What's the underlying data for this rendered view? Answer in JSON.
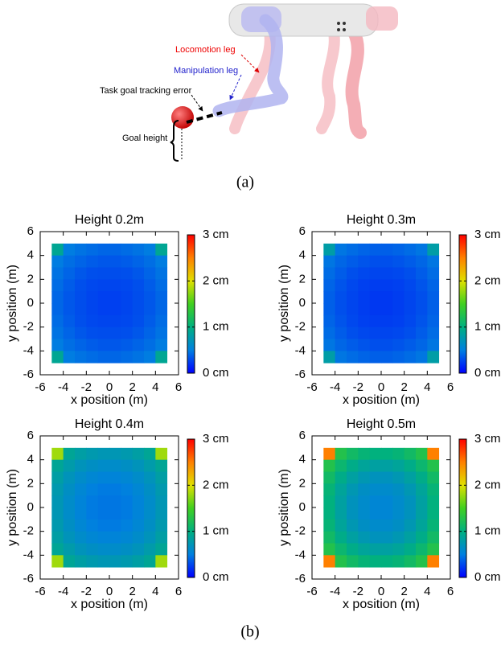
{
  "illustration": {
    "locomotion_label": "Locomotion leg",
    "manipulation_label": "Manipulation leg",
    "error_label": "Task goal tracking error",
    "height_label": "Goal height",
    "caption": "(a)"
  },
  "caption_b": "(b)",
  "chart_data": [
    {
      "type": "heatmap",
      "title": "Height 0.2m",
      "xlabel": "x position (m)",
      "ylabel": "y position (m)",
      "x": [
        -4.5,
        -3.5,
        -2.5,
        -1.5,
        -0.5,
        0.5,
        1.5,
        2.5,
        3.5,
        4.5
      ],
      "y": [
        4.5,
        3.5,
        2.5,
        1.5,
        0.5,
        -0.5,
        -1.5,
        -2.5,
        -3.5,
        -4.5
      ],
      "values": [
        [
          0.9,
          0.49,
          0.45,
          0.42,
          0.4,
          0.4,
          0.42,
          0.45,
          0.49,
          0.9
        ],
        [
          0.49,
          0.43,
          0.39,
          0.36,
          0.34,
          0.34,
          0.36,
          0.39,
          0.43,
          0.49
        ],
        [
          0.45,
          0.39,
          0.34,
          0.31,
          0.3,
          0.3,
          0.31,
          0.34,
          0.39,
          0.45
        ],
        [
          0.42,
          0.36,
          0.31,
          0.28,
          0.27,
          0.27,
          0.28,
          0.31,
          0.36,
          0.42
        ],
        [
          0.4,
          0.34,
          0.3,
          0.27,
          0.25,
          0.25,
          0.27,
          0.3,
          0.34,
          0.4
        ],
        [
          0.4,
          0.34,
          0.3,
          0.27,
          0.25,
          0.25,
          0.27,
          0.3,
          0.34,
          0.4
        ],
        [
          0.42,
          0.36,
          0.31,
          0.28,
          0.27,
          0.27,
          0.28,
          0.31,
          0.36,
          0.42
        ],
        [
          0.45,
          0.39,
          0.34,
          0.31,
          0.3,
          0.3,
          0.31,
          0.34,
          0.39,
          0.45
        ],
        [
          0.49,
          0.43,
          0.39,
          0.36,
          0.34,
          0.34,
          0.36,
          0.39,
          0.43,
          0.49
        ],
        [
          0.9,
          0.49,
          0.45,
          0.42,
          0.4,
          0.4,
          0.42,
          0.45,
          0.49,
          0.9
        ]
      ],
      "xlim": [
        -6,
        6
      ],
      "ylim": [
        -6,
        6
      ],
      "xticks": [
        -6,
        -4,
        -2,
        0,
        2,
        4,
        6
      ],
      "yticks": [
        -6,
        -4,
        -2,
        0,
        2,
        4,
        6
      ],
      "colorbar": {
        "lim": [
          0,
          3
        ],
        "ticks": [
          {
            "value": 0,
            "label": "0 cm"
          },
          {
            "value": 1,
            "label": "1 cm"
          },
          {
            "value": 2,
            "label": "2 cm"
          },
          {
            "value": 3,
            "label": "3 cm"
          }
        ],
        "colormap": [
          "#0000ff",
          "#0080e0",
          "#00b080",
          "#40d020",
          "#e0e000",
          "#ff8000",
          "#ff0000"
        ]
      }
    },
    {
      "type": "heatmap",
      "title": "Height 0.3m",
      "xlabel": "x position (m)",
      "ylabel": "y position (m)",
      "x": [
        -4.5,
        -3.5,
        -2.5,
        -1.5,
        -0.5,
        0.5,
        1.5,
        2.5,
        3.5,
        4.5
      ],
      "y": [
        4.5,
        3.5,
        2.5,
        1.5,
        0.5,
        -0.5,
        -1.5,
        -2.5,
        -3.5,
        -4.5
      ],
      "values": [
        [
          0.8,
          0.46,
          0.42,
          0.39,
          0.37,
          0.37,
          0.39,
          0.42,
          0.46,
          0.8
        ],
        [
          0.46,
          0.4,
          0.36,
          0.33,
          0.31,
          0.31,
          0.33,
          0.36,
          0.4,
          0.46
        ],
        [
          0.42,
          0.36,
          0.31,
          0.28,
          0.27,
          0.27,
          0.28,
          0.31,
          0.36,
          0.42
        ],
        [
          0.39,
          0.33,
          0.28,
          0.25,
          0.24,
          0.24,
          0.25,
          0.28,
          0.33,
          0.39
        ],
        [
          0.37,
          0.31,
          0.27,
          0.24,
          0.22,
          0.22,
          0.24,
          0.27,
          0.31,
          0.37
        ],
        [
          0.37,
          0.31,
          0.27,
          0.24,
          0.22,
          0.22,
          0.24,
          0.27,
          0.31,
          0.37
        ],
        [
          0.39,
          0.33,
          0.28,
          0.25,
          0.24,
          0.24,
          0.25,
          0.28,
          0.33,
          0.39
        ],
        [
          0.42,
          0.36,
          0.31,
          0.28,
          0.27,
          0.27,
          0.28,
          0.31,
          0.36,
          0.42
        ],
        [
          0.46,
          0.4,
          0.36,
          0.33,
          0.31,
          0.31,
          0.33,
          0.36,
          0.4,
          0.46
        ],
        [
          0.8,
          0.46,
          0.42,
          0.39,
          0.37,
          0.37,
          0.39,
          0.42,
          0.46,
          0.8
        ]
      ],
      "xlim": [
        -6,
        6
      ],
      "ylim": [
        -6,
        6
      ],
      "xticks": [
        -6,
        -4,
        -2,
        0,
        2,
        4,
        6
      ],
      "yticks": [
        -6,
        -4,
        -2,
        0,
        2,
        4,
        6
      ],
      "colorbar": {
        "lim": [
          0,
          3
        ],
        "ticks": [
          {
            "value": 0,
            "label": "0 cm"
          },
          {
            "value": 1,
            "label": "1 cm"
          },
          {
            "value": 2,
            "label": "2 cm"
          },
          {
            "value": 3,
            "label": "3 cm"
          }
        ],
        "colormap": [
          "#0000ff",
          "#0080e0",
          "#00b080",
          "#40d020",
          "#e0e000",
          "#ff8000",
          "#ff0000"
        ]
      }
    },
    {
      "type": "heatmap",
      "title": "Height 0.4m",
      "xlabel": "x position (m)",
      "ylabel": "y position (m)",
      "x": [
        -4.5,
        -3.5,
        -2.5,
        -1.5,
        -0.5,
        0.5,
        1.5,
        2.5,
        3.5,
        4.5
      ],
      "y": [
        4.5,
        3.5,
        2.5,
        1.5,
        0.5,
        -0.5,
        -1.5,
        -2.5,
        -3.5,
        -4.5
      ],
      "values": [
        [
          1.8,
          0.89,
          0.81,
          0.76,
          0.73,
          0.73,
          0.76,
          0.81,
          0.89,
          1.8
        ],
        [
          0.89,
          0.78,
          0.7,
          0.65,
          0.62,
          0.62,
          0.65,
          0.7,
          0.78,
          0.89
        ],
        [
          0.81,
          0.7,
          0.62,
          0.57,
          0.54,
          0.54,
          0.57,
          0.62,
          0.7,
          0.81
        ],
        [
          0.76,
          0.65,
          0.57,
          0.51,
          0.48,
          0.48,
          0.51,
          0.57,
          0.65,
          0.76
        ],
        [
          0.73,
          0.62,
          0.54,
          0.48,
          0.46,
          0.46,
          0.48,
          0.54,
          0.62,
          0.73
        ],
        [
          0.73,
          0.62,
          0.54,
          0.48,
          0.46,
          0.46,
          0.48,
          0.54,
          0.62,
          0.73
        ],
        [
          0.76,
          0.65,
          0.57,
          0.51,
          0.48,
          0.48,
          0.51,
          0.57,
          0.65,
          0.76
        ],
        [
          0.81,
          0.7,
          0.62,
          0.57,
          0.54,
          0.54,
          0.57,
          0.62,
          0.7,
          0.81
        ],
        [
          0.89,
          0.78,
          0.7,
          0.65,
          0.62,
          0.62,
          0.65,
          0.7,
          0.78,
          0.89
        ],
        [
          1.8,
          0.89,
          0.81,
          0.76,
          0.73,
          0.73,
          0.76,
          0.81,
          0.89,
          1.8
        ]
      ],
      "xlim": [
        -6,
        6
      ],
      "ylim": [
        -6,
        6
      ],
      "xticks": [
        -6,
        -4,
        -2,
        0,
        2,
        4,
        6
      ],
      "yticks": [
        -6,
        -4,
        -2,
        0,
        2,
        4,
        6
      ],
      "colorbar": {
        "lim": [
          0,
          3
        ],
        "ticks": [
          {
            "value": 0,
            "label": "0 cm"
          },
          {
            "value": 1,
            "label": "1 cm"
          },
          {
            "value": 2,
            "label": "2 cm"
          },
          {
            "value": 3,
            "label": "3 cm"
          }
        ],
        "colormap": [
          "#0000ff",
          "#0080e0",
          "#00b080",
          "#40d020",
          "#e0e000",
          "#ff8000",
          "#ff0000"
        ]
      }
    },
    {
      "type": "heatmap",
      "title": "Height 0.5m",
      "xlabel": "x position (m)",
      "ylabel": "y position (m)",
      "x": [
        -4.5,
        -3.5,
        -2.5,
        -1.5,
        -0.5,
        0.5,
        1.5,
        2.5,
        3.5,
        4.5
      ],
      "y": [
        4.5,
        3.5,
        2.5,
        1.5,
        0.5,
        -0.5,
        -1.5,
        -2.5,
        -3.5,
        -4.5
      ],
      "values": [
        [
          2.5,
          1.27,
          1.14,
          1.05,
          1.01,
          1.01,
          1.05,
          1.14,
          1.27,
          2.5
        ],
        [
          1.27,
          1.09,
          0.96,
          0.87,
          0.83,
          0.83,
          0.87,
          0.96,
          1.09,
          1.27
        ],
        [
          1.14,
          0.96,
          0.83,
          0.74,
          0.69,
          0.69,
          0.74,
          0.83,
          0.96,
          1.14
        ],
        [
          1.05,
          0.87,
          0.74,
          0.65,
          0.61,
          0.61,
          0.65,
          0.74,
          0.87,
          1.05
        ],
        [
          1.01,
          0.83,
          0.69,
          0.61,
          0.56,
          0.56,
          0.61,
          0.69,
          0.83,
          1.01
        ],
        [
          1.01,
          0.83,
          0.69,
          0.61,
          0.56,
          0.56,
          0.61,
          0.69,
          0.83,
          1.01
        ],
        [
          1.05,
          0.87,
          0.74,
          0.65,
          0.61,
          0.61,
          0.65,
          0.74,
          0.87,
          1.05
        ],
        [
          1.14,
          0.96,
          0.83,
          0.74,
          0.69,
          0.69,
          0.74,
          0.83,
          0.96,
          1.14
        ],
        [
          1.27,
          1.09,
          0.96,
          0.87,
          0.83,
          0.83,
          0.87,
          0.96,
          1.09,
          1.27
        ],
        [
          2.5,
          1.27,
          1.14,
          1.05,
          1.01,
          1.01,
          1.05,
          1.14,
          1.27,
          2.5
        ]
      ],
      "xlim": [
        -6,
        6
      ],
      "ylim": [
        -6,
        6
      ],
      "xticks": [
        -6,
        -4,
        -2,
        0,
        2,
        4,
        6
      ],
      "yticks": [
        -6,
        -4,
        -2,
        0,
        2,
        4,
        6
      ],
      "colorbar": {
        "lim": [
          0,
          3
        ],
        "ticks": [
          {
            "value": 0,
            "label": "0 cm"
          },
          {
            "value": 1,
            "label": "1 cm"
          },
          {
            "value": 2,
            "label": "2 cm"
          },
          {
            "value": 3,
            "label": "3 cm"
          }
        ],
        "colormap": [
          "#0000ff",
          "#0080e0",
          "#00b080",
          "#40d020",
          "#e0e000",
          "#ff8000",
          "#ff0000"
        ]
      }
    }
  ]
}
